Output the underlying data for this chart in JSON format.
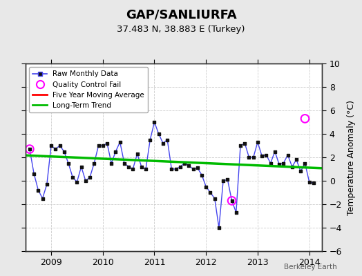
{
  "title": "GAP/SANLIURFA",
  "subtitle": "37.483 N, 38.883 E (Turkey)",
  "ylabel": "Temperature Anomaly (°C)",
  "watermark": "Berkeley Earth",
  "ylim": [
    -6,
    10
  ],
  "yticks": [
    -6,
    -4,
    -2,
    0,
    2,
    4,
    6,
    8,
    10
  ],
  "xlim": [
    2008.5,
    2014.25
  ],
  "xticks": [
    2009,
    2010,
    2011,
    2012,
    2013,
    2014
  ],
  "background_color": "#e8e8e8",
  "plot_bg_color": "#ffffff",
  "raw_color": "#4444ee",
  "raw_marker_color": "#111111",
  "qc_fail_color": "#ff00ff",
  "moving_avg_color": "#ff0000",
  "trend_color": "#00bb00",
  "monthly_data": [
    [
      2008.583,
      2.7
    ],
    [
      2008.667,
      0.6
    ],
    [
      2008.75,
      -0.8
    ],
    [
      2008.833,
      -1.5
    ],
    [
      2008.917,
      -0.3
    ],
    [
      2009.0,
      3.0
    ],
    [
      2009.083,
      2.7
    ],
    [
      2009.167,
      3.0
    ],
    [
      2009.25,
      2.5
    ],
    [
      2009.333,
      1.5
    ],
    [
      2009.417,
      0.3
    ],
    [
      2009.5,
      -0.1
    ],
    [
      2009.583,
      1.2
    ],
    [
      2009.667,
      0.0
    ],
    [
      2009.75,
      0.3
    ],
    [
      2009.833,
      1.5
    ],
    [
      2009.917,
      3.0
    ],
    [
      2010.0,
      3.0
    ],
    [
      2010.083,
      3.2
    ],
    [
      2010.167,
      1.5
    ],
    [
      2010.25,
      2.5
    ],
    [
      2010.333,
      3.3
    ],
    [
      2010.417,
      1.5
    ],
    [
      2010.5,
      1.2
    ],
    [
      2010.583,
      1.0
    ],
    [
      2010.667,
      2.3
    ],
    [
      2010.75,
      1.2
    ],
    [
      2010.833,
      1.0
    ],
    [
      2010.917,
      3.5
    ],
    [
      2011.0,
      5.0
    ],
    [
      2011.083,
      4.0
    ],
    [
      2011.167,
      3.2
    ],
    [
      2011.25,
      3.5
    ],
    [
      2011.333,
      1.0
    ],
    [
      2011.417,
      1.0
    ],
    [
      2011.5,
      1.2
    ],
    [
      2011.583,
      1.5
    ],
    [
      2011.667,
      1.3
    ],
    [
      2011.75,
      1.0
    ],
    [
      2011.833,
      1.1
    ],
    [
      2011.917,
      0.5
    ],
    [
      2012.0,
      -0.5
    ],
    [
      2012.083,
      -1.0
    ],
    [
      2012.167,
      -1.5
    ],
    [
      2012.25,
      -4.0
    ],
    [
      2012.333,
      0.0
    ],
    [
      2012.417,
      0.1
    ],
    [
      2012.5,
      -1.7
    ],
    [
      2012.583,
      -2.7
    ],
    [
      2012.667,
      3.0
    ],
    [
      2012.75,
      3.2
    ],
    [
      2012.833,
      2.0
    ],
    [
      2012.917,
      2.0
    ],
    [
      2013.0,
      3.3
    ],
    [
      2013.083,
      2.1
    ],
    [
      2013.167,
      2.2
    ],
    [
      2013.25,
      1.5
    ],
    [
      2013.333,
      2.5
    ],
    [
      2013.417,
      1.4
    ],
    [
      2013.5,
      1.5
    ],
    [
      2013.583,
      2.2
    ],
    [
      2013.667,
      1.2
    ],
    [
      2013.75,
      1.8
    ],
    [
      2013.833,
      0.8
    ],
    [
      2013.917,
      1.5
    ],
    [
      2014.0,
      -0.1
    ],
    [
      2014.083,
      -0.2
    ]
  ],
  "qc_fail_points": [
    [
      2008.583,
      2.7
    ],
    [
      2012.5,
      -1.7
    ],
    [
      2013.917,
      5.3
    ]
  ],
  "trend_line_x": [
    2008.5,
    2014.25
  ],
  "trend_line_y": [
    2.17,
    1.07
  ],
  "legend_labels": [
    "Raw Monthly Data",
    "Quality Control Fail",
    "Five Year Moving Average",
    "Long-Term Trend"
  ]
}
